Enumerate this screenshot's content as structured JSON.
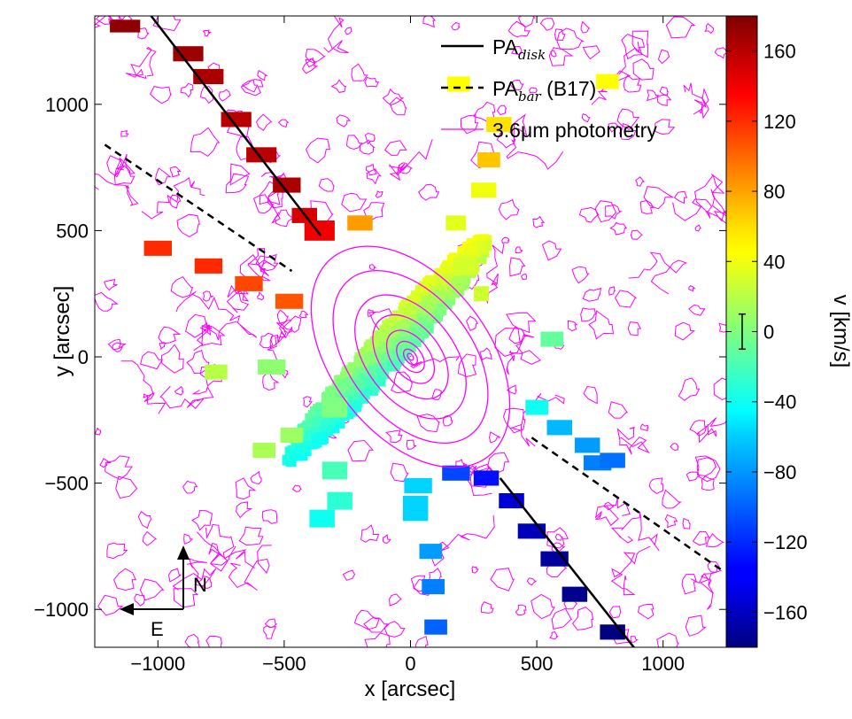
{
  "chart_data": {
    "type": "heatmap",
    "xlabel": "x [arcsec]",
    "ylabel": "y [arcsec]",
    "xlim": [
      -1250,
      1250
    ],
    "ylim": [
      -1150,
      1350
    ],
    "xticks": [
      -1000,
      -500,
      0,
      500,
      1000
    ],
    "xtick_labels": [
      "−1000",
      "−500",
      "0",
      "500",
      "1000"
    ],
    "yticks": [
      -1000,
      -500,
      0,
      500,
      1000
    ],
    "ytick_labels": [
      "−1000",
      "−500",
      "0",
      "500",
      "1000"
    ],
    "colorbar": {
      "label": "v [km/s]",
      "range": [
        -180,
        180
      ],
      "ticks": [
        -160,
        -120,
        -80,
        -40,
        0,
        40,
        80,
        120,
        160
      ],
      "tick_labels": [
        "−160",
        "−120",
        "−80",
        "−40",
        "0",
        "40",
        "80",
        "120",
        "160"
      ],
      "colormap": "jet",
      "error_bar": {
        "center": 0,
        "half_width": 10
      }
    },
    "legend": {
      "placement": "top-right",
      "entries": [
        {
          "style": "solid",
          "color": "#000000",
          "label": "PA",
          "subscript": "disk"
        },
        {
          "style": "dashed",
          "color": "#000000",
          "label": "PA",
          "subscript": "bar",
          "suffix": " (B17)"
        },
        {
          "style": "solid-thin",
          "color": "#ff00ff",
          "label": "3.6μm photometry"
        }
      ]
    },
    "lines": [
      {
        "name": "PA_disk",
        "style": "solid",
        "points": [
          [
            -1050,
            1380
          ],
          [
            -355,
            480
          ],
          [
            355,
            -480
          ],
          [
            900,
            -1170
          ]
        ]
      },
      {
        "name": "PA_bar",
        "style": "dashed",
        "points": [
          [
            -1210,
            840
          ],
          [
            -470,
            340
          ],
          [
            480,
            -320
          ],
          [
            1240,
            -850
          ]
        ]
      }
    ],
    "central_velocity_gradient": {
      "center": [
        0,
        0
      ],
      "v_ne": 160,
      "v_sw": -160,
      "axis_pa_deg": 38
    },
    "tiles": [
      {
        "x": -1130,
        "y": 1310,
        "w": 120,
        "h": 50,
        "v": 175
      },
      {
        "x": -880,
        "y": 1200,
        "w": 120,
        "h": 60,
        "v": 170
      },
      {
        "x": -800,
        "y": 1110,
        "w": 120,
        "h": 60,
        "v": 165
      },
      {
        "x": -690,
        "y": 940,
        "w": 120,
        "h": 60,
        "v": 160
      },
      {
        "x": -590,
        "y": 800,
        "w": 120,
        "h": 60,
        "v": 160
      },
      {
        "x": -490,
        "y": 680,
        "w": 110,
        "h": 60,
        "v": 165
      },
      {
        "x": -420,
        "y": 560,
        "w": 100,
        "h": 60,
        "v": 150
      },
      {
        "x": -360,
        "y": 500,
        "w": 120,
        "h": 80,
        "v": 140
      },
      {
        "x": -1000,
        "y": 430,
        "w": 110,
        "h": 60,
        "v": 120
      },
      {
        "x": -800,
        "y": 360,
        "w": 110,
        "h": 60,
        "v": 120
      },
      {
        "x": -640,
        "y": 290,
        "w": 110,
        "h": 60,
        "v": 110
      },
      {
        "x": -480,
        "y": 220,
        "w": 110,
        "h": 60,
        "v": 105
      },
      {
        "x": 780,
        "y": 1090,
        "w": 90,
        "h": 60,
        "v": 45
      },
      {
        "x": -200,
        "y": 530,
        "w": 100,
        "h": 60,
        "v": 80
      },
      {
        "x": 180,
        "y": 530,
        "w": 80,
        "h": 60,
        "v": 35
      },
      {
        "x": 290,
        "y": 660,
        "w": 100,
        "h": 60,
        "v": 40
      },
      {
        "x": 350,
        "y": 920,
        "w": 100,
        "h": 60,
        "v": 55
      },
      {
        "x": 190,
        "y": 1080,
        "w": 90,
        "h": 60,
        "v": 45
      },
      {
        "x": 310,
        "y": 780,
        "w": 90,
        "h": 60,
        "v": 65
      },
      {
        "x": 220,
        "y": 360,
        "w": 100,
        "h": 70,
        "v": 30
      },
      {
        "x": 280,
        "y": 250,
        "w": 60,
        "h": 60,
        "v": 28
      },
      {
        "x": 560,
        "y": 70,
        "w": 90,
        "h": 60,
        "v": -10
      },
      {
        "x": 500,
        "y": -200,
        "w": 90,
        "h": 60,
        "v": -40
      },
      {
        "x": 590,
        "y": -280,
        "w": 100,
        "h": 60,
        "v": -70
      },
      {
        "x": 700,
        "y": -350,
        "w": 100,
        "h": 60,
        "v": -80
      },
      {
        "x": 740,
        "y": -420,
        "w": 110,
        "h": 60,
        "v": -90
      },
      {
        "x": 800,
        "y": -410,
        "w": 100,
        "h": 60,
        "v": -95
      },
      {
        "x": -770,
        "y": -60,
        "w": 90,
        "h": 60,
        "v": 20
      },
      {
        "x": -550,
        "y": -40,
        "w": 110,
        "h": 60,
        "v": 5
      },
      {
        "x": -300,
        "y": -200,
        "w": 100,
        "h": 80,
        "v": 0
      },
      {
        "x": -580,
        "y": -370,
        "w": 90,
        "h": 60,
        "v": 15
      },
      {
        "x": -470,
        "y": -310,
        "w": 90,
        "h": 60,
        "v": 10
      },
      {
        "x": -300,
        "y": -450,
        "w": 100,
        "h": 70,
        "v": -20
      },
      {
        "x": -280,
        "y": -570,
        "w": 100,
        "h": 70,
        "v": -30
      },
      {
        "x": -350,
        "y": -640,
        "w": 100,
        "h": 70,
        "v": -40
      },
      {
        "x": 30,
        "y": -510,
        "w": 110,
        "h": 60,
        "v": -60
      },
      {
        "x": 20,
        "y": -600,
        "w": 100,
        "h": 100,
        "v": -60
      },
      {
        "x": 80,
        "y": -770,
        "w": 90,
        "h": 60,
        "v": -80
      },
      {
        "x": 90,
        "y": -910,
        "w": 90,
        "h": 60,
        "v": -90
      },
      {
        "x": 100,
        "y": -1070,
        "w": 90,
        "h": 60,
        "v": -100
      },
      {
        "x": 400,
        "y": -570,
        "w": 100,
        "h": 60,
        "v": -150
      },
      {
        "x": 480,
        "y": -690,
        "w": 110,
        "h": 60,
        "v": -160
      },
      {
        "x": 570,
        "y": -800,
        "w": 110,
        "h": 60,
        "v": -170
      },
      {
        "x": 650,
        "y": -940,
        "w": 100,
        "h": 60,
        "v": -175
      },
      {
        "x": 800,
        "y": -1090,
        "w": 100,
        "h": 60,
        "v": -180
      },
      {
        "x": 180,
        "y": -460,
        "w": 110,
        "h": 60,
        "v": -110
      },
      {
        "x": 300,
        "y": -480,
        "w": 100,
        "h": 60,
        "v": -130
      }
    ],
    "contours": {
      "color": "#ff00ff",
      "center": [
        0,
        0
      ],
      "semi_major_axes": [
        15,
        35,
        70,
        120,
        190,
        280,
        390,
        500
      ],
      "axis_ratio": 0.62,
      "pa_deg": 38
    },
    "compass": {
      "north_label": "N",
      "east_label": "E"
    }
  }
}
